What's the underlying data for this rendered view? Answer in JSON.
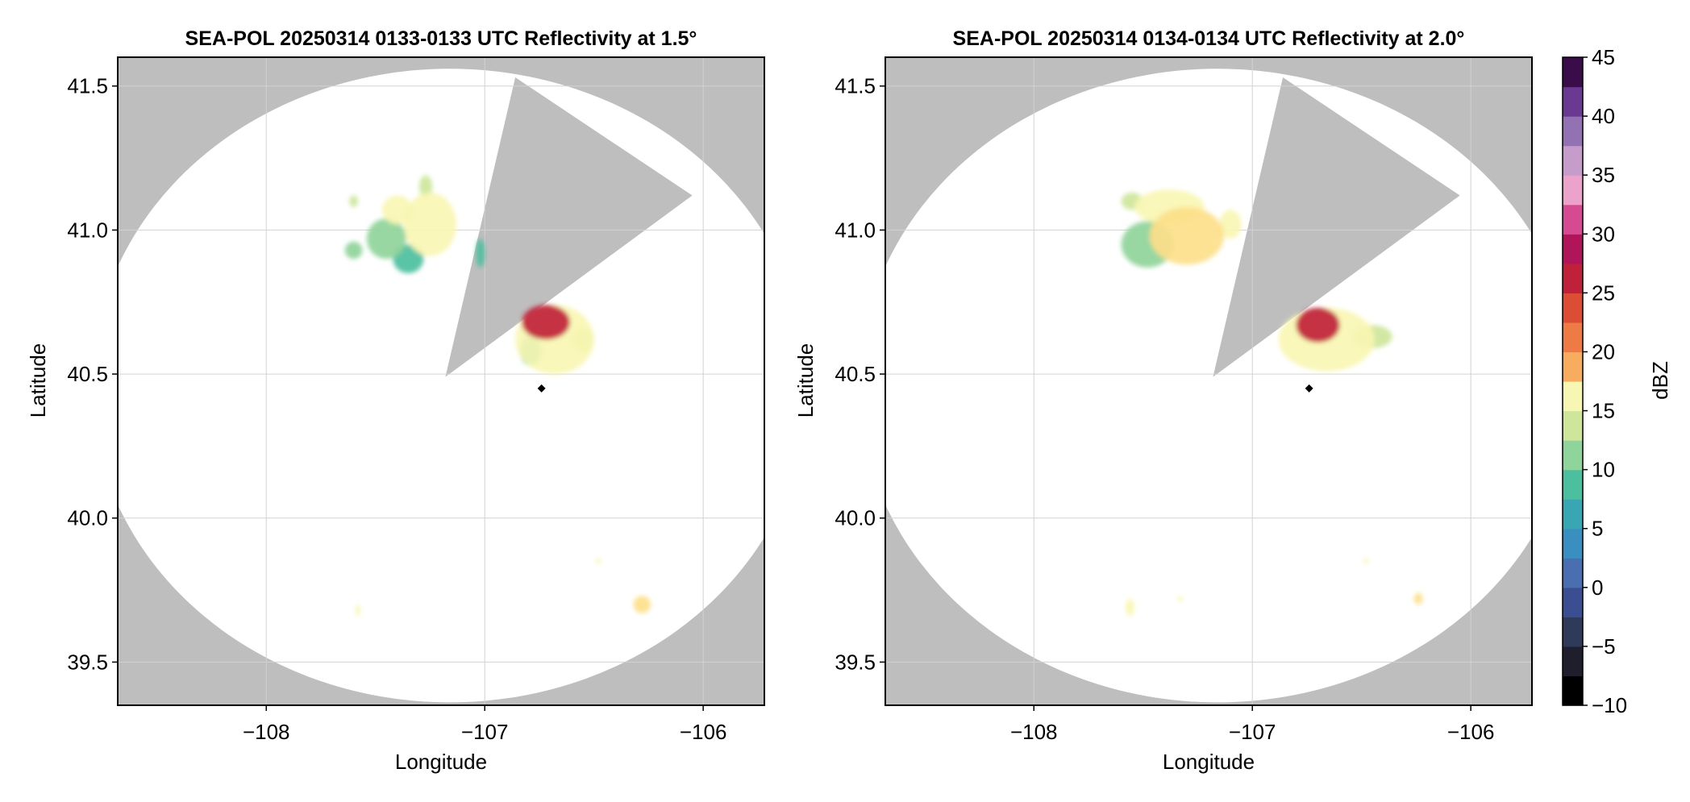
{
  "colors": {
    "background": "#ffffff",
    "no_data_gray": "#bebebe",
    "coverage_white": "#ffffff",
    "grid": "#d2d2d2",
    "frame": "#000000",
    "colormap_stops": [
      "#000000",
      "#1e1e2d",
      "#2f3a5a",
      "#3b4e91",
      "#4a6fb0",
      "#3a8fc0",
      "#39a7b3",
      "#4cbf9e",
      "#8fd49a",
      "#cde69b",
      "#f8f6b3",
      "#fde08a",
      "#f8ac5f",
      "#ee7b45",
      "#dc4d35",
      "#c0213a",
      "#b0155a",
      "#d64a92",
      "#eba3cc",
      "#c69ccb",
      "#9272b2",
      "#6a3a92",
      "#3a0d4a"
    ]
  },
  "chart_data": [
    {
      "type": "heatmap",
      "title": "SEA-POL 20250314 0133-0133 UTC Reflectivity at 1.5°",
      "xlabel": "Longitude",
      "ylabel": "Latitude",
      "xlim": [
        -108.68,
        -105.72
      ],
      "ylim": [
        39.35,
        41.6
      ],
      "xticks": [
        -108,
        -107,
        -106
      ],
      "xtick_labels": [
        "−108",
        "−107",
        "−106"
      ],
      "yticks": [
        39.5,
        40.0,
        40.5,
        41.0,
        41.5
      ],
      "ytick_labels": [
        "39.5",
        "40.0",
        "40.5",
        "41.0",
        "41.5"
      ],
      "grid": true,
      "radar_site": {
        "lon": -106.74,
        "lat": 40.45
      },
      "coverage": {
        "center_lon": -107.16,
        "center_lat": 40.46,
        "radius_lon": 1.64,
        "radius_lat": 1.1
      },
      "blanked_sector": [
        [
          -107.18,
          40.49
        ],
        [
          -106.86,
          41.53
        ],
        [
          -106.05,
          41.12
        ]
      ],
      "echoes": [
        {
          "lon": -106.72,
          "lat": 40.68,
          "rlon": 0.11,
          "rlat": 0.06,
          "dbz": 27
        },
        {
          "lon": -106.68,
          "lat": 40.62,
          "rlon": 0.18,
          "rlat": 0.12,
          "dbz": 14
        },
        {
          "lon": -106.55,
          "lat": 40.62,
          "rlon": 0.05,
          "rlat": 0.04,
          "dbz": 13
        },
        {
          "lon": -106.79,
          "lat": 40.58,
          "rlon": 0.05,
          "rlat": 0.05,
          "dbz": 9
        },
        {
          "lon": -107.25,
          "lat": 41.02,
          "rlon": 0.12,
          "rlat": 0.11,
          "dbz": 16
        },
        {
          "lon": -107.45,
          "lat": 40.97,
          "rlon": 0.09,
          "rlat": 0.07,
          "dbz": 11
        },
        {
          "lon": -107.35,
          "lat": 40.9,
          "rlon": 0.07,
          "rlat": 0.05,
          "dbz": 8
        },
        {
          "lon": -107.4,
          "lat": 41.07,
          "rlon": 0.07,
          "rlat": 0.05,
          "dbz": 14
        },
        {
          "lon": -107.6,
          "lat": 40.93,
          "rlon": 0.04,
          "rlat": 0.03,
          "dbz": 10
        },
        {
          "lon": -107.6,
          "lat": 41.1,
          "rlon": 0.02,
          "rlat": 0.02,
          "dbz": 13
        },
        {
          "lon": -107.27,
          "lat": 41.15,
          "rlon": 0.03,
          "rlat": 0.04,
          "dbz": 12
        },
        {
          "lon": -107.02,
          "lat": 40.92,
          "rlon": 0.02,
          "rlat": 0.05,
          "dbz": 9
        },
        {
          "lon": -106.28,
          "lat": 39.7,
          "rlon": 0.04,
          "rlat": 0.03,
          "dbz": 17
        },
        {
          "lon": -107.58,
          "lat": 39.68,
          "rlon": 0.01,
          "rlat": 0.02,
          "dbz": 15
        },
        {
          "lon": -106.48,
          "lat": 39.85,
          "rlon": 0.01,
          "rlat": 0.01,
          "dbz": 15
        }
      ]
    },
    {
      "type": "heatmap",
      "title": "SEA-POL 20250314 0134-0134 UTC Reflectivity at 2.0°",
      "xlabel": "Longitude",
      "ylabel": "Latitude",
      "xlim": [
        -108.68,
        -105.72
      ],
      "ylim": [
        39.35,
        41.6
      ],
      "xticks": [
        -108,
        -107,
        -106
      ],
      "xtick_labels": [
        "−108",
        "−107",
        "−106"
      ],
      "yticks": [
        39.5,
        40.0,
        40.5,
        41.0,
        41.5
      ],
      "ytick_labels": [
        "39.5",
        "40.0",
        "40.5",
        "41.0",
        "41.5"
      ],
      "grid": true,
      "radar_site": {
        "lon": -106.74,
        "lat": 40.45
      },
      "coverage": {
        "center_lon": -107.16,
        "center_lat": 40.46,
        "radius_lon": 1.64,
        "radius_lat": 1.1
      },
      "blanked_sector": [
        [
          -107.18,
          40.49
        ],
        [
          -106.86,
          41.53
        ],
        [
          -106.05,
          41.12
        ]
      ],
      "echoes": [
        {
          "lon": -106.7,
          "lat": 40.67,
          "rlon": 0.1,
          "rlat": 0.06,
          "dbz": 26
        },
        {
          "lon": -106.66,
          "lat": 40.62,
          "rlon": 0.22,
          "rlat": 0.11,
          "dbz": 14
        },
        {
          "lon": -106.45,
          "lat": 40.63,
          "rlon": 0.09,
          "rlat": 0.04,
          "dbz": 13
        },
        {
          "lon": -107.3,
          "lat": 40.98,
          "rlon": 0.17,
          "rlat": 0.1,
          "dbz": 17
        },
        {
          "lon": -107.48,
          "lat": 40.95,
          "rlon": 0.12,
          "rlat": 0.08,
          "dbz": 11
        },
        {
          "lon": -107.38,
          "lat": 41.08,
          "rlon": 0.16,
          "rlat": 0.06,
          "dbz": 15
        },
        {
          "lon": -107.55,
          "lat": 41.1,
          "rlon": 0.05,
          "rlat": 0.03,
          "dbz": 13
        },
        {
          "lon": -107.1,
          "lat": 41.02,
          "rlon": 0.05,
          "rlat": 0.05,
          "dbz": 14
        },
        {
          "lon": -107.56,
          "lat": 39.69,
          "rlon": 0.02,
          "rlat": 0.03,
          "dbz": 16
        },
        {
          "lon": -107.33,
          "lat": 39.72,
          "rlon": 0.01,
          "rlat": 0.01,
          "dbz": 14
        },
        {
          "lon": -106.24,
          "lat": 39.72,
          "rlon": 0.02,
          "rlat": 0.02,
          "dbz": 17
        },
        {
          "lon": -106.48,
          "lat": 39.85,
          "rlon": 0.01,
          "rlat": 0.01,
          "dbz": 15
        }
      ]
    }
  ],
  "colorbar": {
    "label": "dBZ",
    "range": [
      -10,
      45
    ],
    "step": 2.5,
    "ticks": [
      -10,
      -5,
      0,
      5,
      10,
      15,
      20,
      25,
      30,
      35,
      40,
      45
    ],
    "tick_labels": [
      "−10",
      "−5",
      "0",
      "5",
      "10",
      "15",
      "20",
      "25",
      "30",
      "35",
      "40",
      "45"
    ]
  }
}
